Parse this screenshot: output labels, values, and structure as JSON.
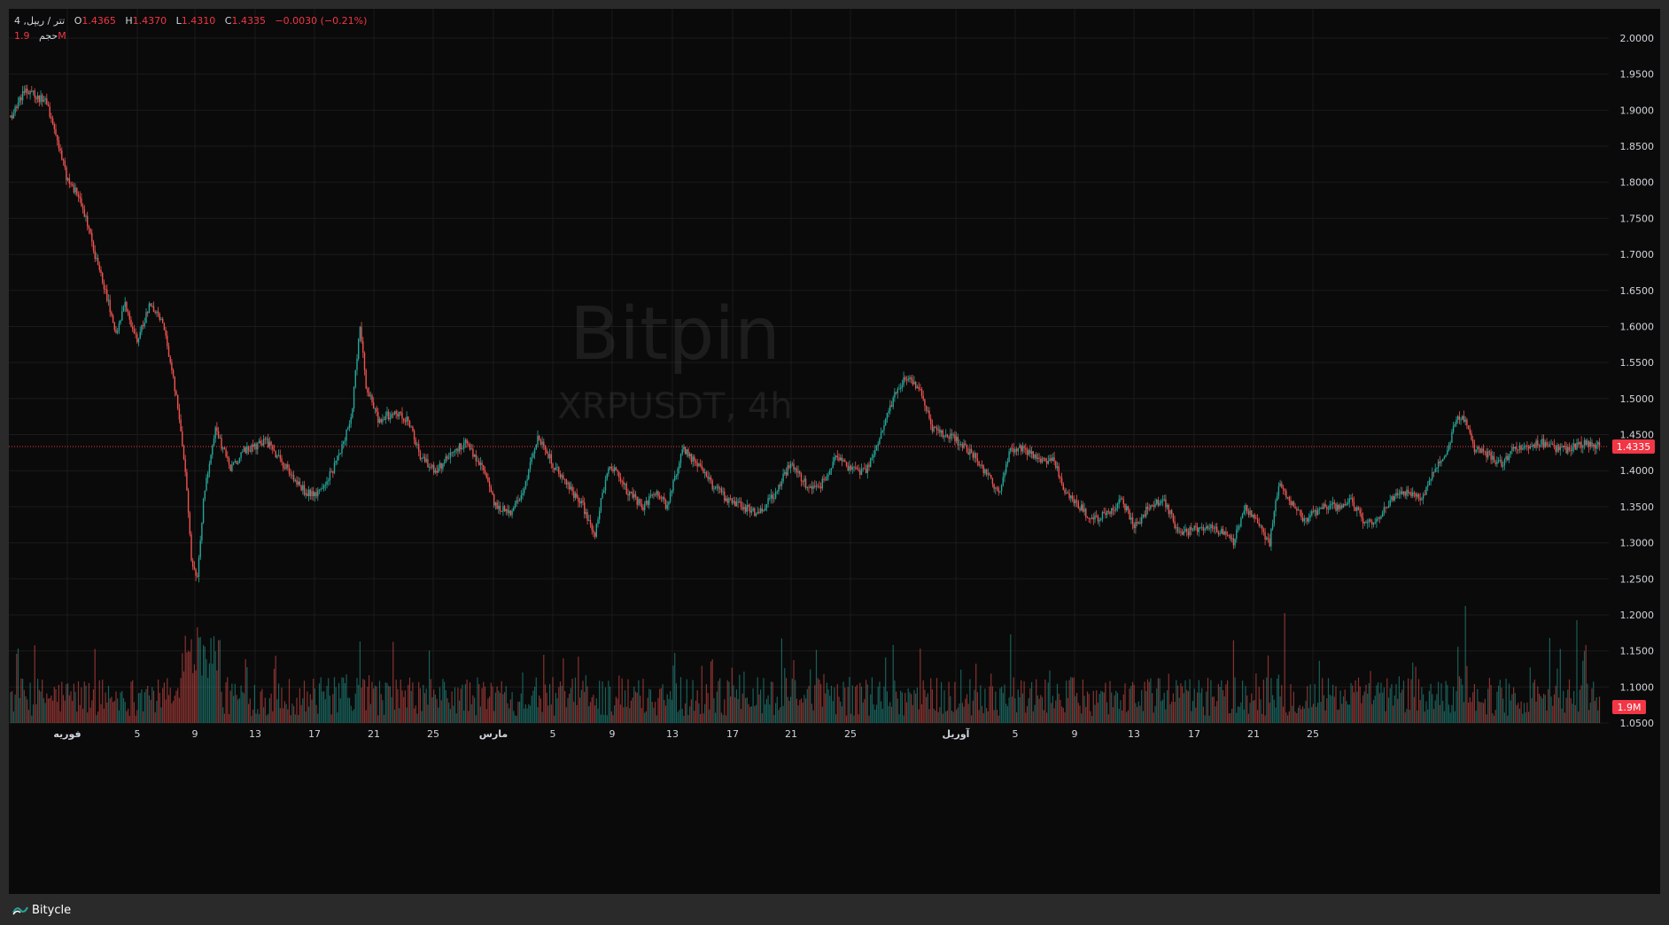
{
  "legend": {
    "title": "4 ,تتر / ریپل",
    "open_label": "O",
    "open": "1.4365",
    "high_label": "H",
    "high": "1.4370",
    "low_label": "L",
    "low": "1.4310",
    "close_label": "C",
    "close": "1.4335",
    "change": "−0.0030 (−0.21%)",
    "volume_label": "حجم",
    "volume": "1.9M"
  },
  "watermark": {
    "brand": "Bitpin",
    "symbol": "XRPUSDT, 4h"
  },
  "footer": {
    "brand": "Bitycle",
    "icon": "bitycle-logo-icon"
  },
  "colors": {
    "up": "#26a69a",
    "down": "#ef5350",
    "background": "#0a0a0a",
    "grid": "#1b1b1b",
    "price_badge": "#f23645",
    "watermark": "#ffffff"
  },
  "chart_data": {
    "type": "candlestick",
    "symbol": "XRPUSDT",
    "timeframe": "4h",
    "last_price": 1.4335,
    "last_price_label": "1.4335",
    "last_volume_label": "1.9M",
    "ylim": [
      1.05,
      2.0
    ],
    "y_ticks": [
      "2.0000",
      "1.9500",
      "1.9000",
      "1.8500",
      "1.8000",
      "1.7500",
      "1.7000",
      "1.6500",
      "1.6000",
      "1.5500",
      "1.5000",
      "1.4500",
      "1.4000",
      "1.3500",
      "1.3000",
      "1.2500",
      "1.2000",
      "1.1500",
      "1.1000",
      "1.0500"
    ],
    "x_labels": [
      "فوریه",
      "5",
      "9",
      "13",
      "17",
      "21",
      "25",
      "مارس",
      "5",
      "9",
      "13",
      "17",
      "21",
      "25",
      "آوریل",
      "5",
      "9",
      "13",
      "17",
      "21",
      "25"
    ],
    "x_label_bold": [
      true,
      false,
      false,
      false,
      false,
      false,
      false,
      true,
      false,
      false,
      false,
      false,
      false,
      false,
      true,
      false,
      false,
      false,
      false,
      false,
      false
    ],
    "path": [
      {
        "i": 0,
        "p": 1.89
      },
      {
        "i": 10,
        "p": 1.93
      },
      {
        "i": 24,
        "p": 1.91
      },
      {
        "i": 30,
        "p": 1.87
      },
      {
        "i": 38,
        "p": 1.8
      },
      {
        "i": 46,
        "p": 1.78
      },
      {
        "i": 56,
        "p": 1.7
      },
      {
        "i": 64,
        "p": 1.64
      },
      {
        "i": 70,
        "p": 1.59
      },
      {
        "i": 76,
        "p": 1.63
      },
      {
        "i": 84,
        "p": 1.58
      },
      {
        "i": 92,
        "p": 1.63
      },
      {
        "i": 102,
        "p": 1.6
      },
      {
        "i": 110,
        "p": 1.5
      },
      {
        "i": 116,
        "p": 1.4
      },
      {
        "i": 120,
        "p": 1.28
      },
      {
        "i": 124,
        "p": 1.25
      },
      {
        "i": 128,
        "p": 1.36
      },
      {
        "i": 136,
        "p": 1.46
      },
      {
        "i": 146,
        "p": 1.4
      },
      {
        "i": 156,
        "p": 1.43
      },
      {
        "i": 170,
        "p": 1.44
      },
      {
        "i": 184,
        "p": 1.4
      },
      {
        "i": 196,
        "p": 1.37
      },
      {
        "i": 206,
        "p": 1.37
      },
      {
        "i": 216,
        "p": 1.41
      },
      {
        "i": 226,
        "p": 1.47
      },
      {
        "i": 232,
        "p": 1.6
      },
      {
        "i": 236,
        "p": 1.52
      },
      {
        "i": 244,
        "p": 1.47
      },
      {
        "i": 254,
        "p": 1.48
      },
      {
        "i": 264,
        "p": 1.47
      },
      {
        "i": 272,
        "p": 1.42
      },
      {
        "i": 282,
        "p": 1.4
      },
      {
        "i": 292,
        "p": 1.42
      },
      {
        "i": 302,
        "p": 1.44
      },
      {
        "i": 312,
        "p": 1.41
      },
      {
        "i": 322,
        "p": 1.35
      },
      {
        "i": 332,
        "p": 1.34
      },
      {
        "i": 340,
        "p": 1.37
      },
      {
        "i": 350,
        "p": 1.45
      },
      {
        "i": 360,
        "p": 1.41
      },
      {
        "i": 370,
        "p": 1.38
      },
      {
        "i": 380,
        "p": 1.35
      },
      {
        "i": 388,
        "p": 1.31
      },
      {
        "i": 392,
        "p": 1.36
      },
      {
        "i": 398,
        "p": 1.41
      },
      {
        "i": 410,
        "p": 1.37
      },
      {
        "i": 420,
        "p": 1.35
      },
      {
        "i": 428,
        "p": 1.37
      },
      {
        "i": 436,
        "p": 1.35
      },
      {
        "i": 446,
        "p": 1.43
      },
      {
        "i": 456,
        "p": 1.41
      },
      {
        "i": 466,
        "p": 1.38
      },
      {
        "i": 476,
        "p": 1.36
      },
      {
        "i": 486,
        "p": 1.35
      },
      {
        "i": 496,
        "p": 1.34
      },
      {
        "i": 508,
        "p": 1.37
      },
      {
        "i": 518,
        "p": 1.41
      },
      {
        "i": 528,
        "p": 1.38
      },
      {
        "i": 538,
        "p": 1.38
      },
      {
        "i": 548,
        "p": 1.42
      },
      {
        "i": 558,
        "p": 1.4
      },
      {
        "i": 568,
        "p": 1.4
      },
      {
        "i": 578,
        "p": 1.45
      },
      {
        "i": 586,
        "p": 1.5
      },
      {
        "i": 594,
        "p": 1.53
      },
      {
        "i": 604,
        "p": 1.51
      },
      {
        "i": 612,
        "p": 1.46
      },
      {
        "i": 620,
        "p": 1.45
      },
      {
        "i": 630,
        "p": 1.44
      },
      {
        "i": 640,
        "p": 1.42
      },
      {
        "i": 650,
        "p": 1.39
      },
      {
        "i": 656,
        "p": 1.37
      },
      {
        "i": 664,
        "p": 1.43
      },
      {
        "i": 674,
        "p": 1.43
      },
      {
        "i": 684,
        "p": 1.41
      },
      {
        "i": 692,
        "p": 1.42
      },
      {
        "i": 700,
        "p": 1.37
      },
      {
        "i": 710,
        "p": 1.35
      },
      {
        "i": 718,
        "p": 1.33
      },
      {
        "i": 728,
        "p": 1.34
      },
      {
        "i": 738,
        "p": 1.36
      },
      {
        "i": 746,
        "p": 1.32
      },
      {
        "i": 756,
        "p": 1.35
      },
      {
        "i": 766,
        "p": 1.36
      },
      {
        "i": 776,
        "p": 1.31
      },
      {
        "i": 788,
        "p": 1.32
      },
      {
        "i": 800,
        "p": 1.32
      },
      {
        "i": 812,
        "p": 1.3
      },
      {
        "i": 820,
        "p": 1.35
      },
      {
        "i": 830,
        "p": 1.32
      },
      {
        "i": 836,
        "p": 1.3
      },
      {
        "i": 842,
        "p": 1.38
      },
      {
        "i": 852,
        "p": 1.35
      },
      {
        "i": 860,
        "p": 1.33
      },
      {
        "i": 870,
        "p": 1.35
      },
      {
        "i": 880,
        "p": 1.35
      },
      {
        "i": 890,
        "p": 1.36
      },
      {
        "i": 898,
        "p": 1.33
      },
      {
        "i": 906,
        "p": 1.33
      },
      {
        "i": 916,
        "p": 1.36
      },
      {
        "i": 926,
        "p": 1.37
      },
      {
        "i": 936,
        "p": 1.36
      },
      {
        "i": 946,
        "p": 1.4
      },
      {
        "i": 954,
        "p": 1.43
      },
      {
        "i": 960,
        "p": 1.47
      },
      {
        "i": 966,
        "p": 1.47
      },
      {
        "i": 972,
        "p": 1.43
      },
      {
        "i": 982,
        "p": 1.42
      },
      {
        "i": 990,
        "p": 1.41
      },
      {
        "i": 998,
        "p": 1.43
      },
      {
        "i": 1008,
        "p": 1.43
      },
      {
        "i": 1016,
        "p": 1.44
      },
      {
        "i": 1026,
        "p": 1.43
      },
      {
        "i": 1036,
        "p": 1.43
      },
      {
        "i": 1046,
        "p": 1.44
      },
      {
        "i": 1052,
        "p": 1.434
      }
    ],
    "volume_spikes": [
      {
        "i": 118,
        "v": 1.0
      },
      {
        "i": 124,
        "v": 1.35
      },
      {
        "i": 128,
        "v": 1.1
      },
      {
        "i": 232,
        "v": 1.15
      },
      {
        "i": 586,
        "v": 1.1
      },
      {
        "i": 604,
        "v": 1.05
      },
      {
        "i": 664,
        "v": 1.25
      },
      {
        "i": 846,
        "v": 1.55
      },
      {
        "i": 966,
        "v": 1.65
      },
      {
        "i": 1022,
        "v": 1.2
      },
      {
        "i": 1040,
        "v": 1.45
      },
      {
        "i": 1046,
        "v": 1.1
      }
    ]
  }
}
